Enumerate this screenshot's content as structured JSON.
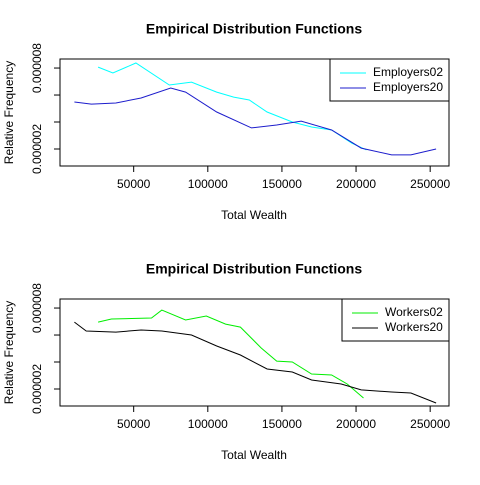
{
  "chart_data": [
    {
      "type": "line",
      "title": "Empirical Distribution Functions",
      "xlabel": "Total Wealth",
      "ylabel": "Relative Frequency",
      "xlim": [
        300,
        262700
      ],
      "ylim": [
        7.4e-07,
        8.67e-06
      ],
      "xticks": [
        50000,
        100000,
        150000,
        200000,
        250000
      ],
      "yticks": [
        {
          "value": 2e-06,
          "label": "0.000002"
        },
        {
          "value": 4e-06,
          "label": null
        },
        {
          "value": 6e-06,
          "label": null
        },
        {
          "value": 8e-06,
          "label": "0.000008"
        }
      ],
      "legend": "topright",
      "series": [
        {
          "name": "Employers02",
          "color": "#00ffff",
          "x": [
            26000,
            36000,
            51500,
            74000,
            89000,
            106000,
            117500,
            128000,
            140000,
            157000,
            170000,
            183500,
            197000,
            207000
          ],
          "values": [
            8.07e-06,
            7.63e-06,
            8.37e-06,
            6.74e-06,
            6.96e-06,
            6.22e-06,
            5.85e-06,
            5.63e-06,
            4.74e-06,
            4e-06,
            3.63e-06,
            3.41e-06,
            2.44e-06,
            1.93e-06
          ]
        },
        {
          "name": "Employers20",
          "color": "#1c1ccc",
          "x": [
            10000,
            21500,
            38000,
            55000,
            75000,
            85000,
            106000,
            129500,
            146500,
            163000,
            183500,
            203500,
            224000,
            237000,
            254000
          ],
          "values": [
            5.48e-06,
            5.33e-06,
            5.41e-06,
            5.78e-06,
            6.52e-06,
            6.22e-06,
            4.74e-06,
            3.56e-06,
            3.78e-06,
            4.07e-06,
            3.41e-06,
            2.07e-06,
            1.56e-06,
            1.56e-06,
            2e-06
          ]
        }
      ]
    },
    {
      "type": "line",
      "title": "Empirical Distribution Functions",
      "xlabel": "Total Wealth",
      "ylabel": "Relative Frequency",
      "xlim": [
        300,
        262700
      ],
      "ylim": [
        7.4e-07,
        8.67e-06
      ],
      "xticks": [
        50000,
        100000,
        150000,
        200000,
        250000
      ],
      "yticks": [
        {
          "value": 2e-06,
          "label": "0.000002"
        },
        {
          "value": 4e-06,
          "label": null
        },
        {
          "value": 6e-06,
          "label": null
        },
        {
          "value": 8e-06,
          "label": "0.000008"
        }
      ],
      "legend": "topright",
      "series": [
        {
          "name": "Workers02",
          "color": "#00ee00",
          "x": [
            26000,
            35000,
            62000,
            69000,
            85000,
            99000,
            112000,
            122000,
            136000,
            146500,
            157000,
            170000,
            183500,
            194000,
            205000
          ],
          "values": [
            6.96e-06,
            7.19e-06,
            7.26e-06,
            7.85e-06,
            7.11e-06,
            7.41e-06,
            6.81e-06,
            6.59e-06,
            5.04e-06,
            4.07e-06,
            4e-06,
            3.11e-06,
            3.04e-06,
            2.37e-06,
            1.33e-06
          ]
        },
        {
          "name": "Workers20",
          "color": "#000000",
          "x": [
            10000,
            18000,
            38000,
            55000,
            69000,
            89000,
            106000,
            122000,
            140000,
            157000,
            170000,
            190000,
            203500,
            224000,
            237000,
            254000
          ],
          "values": [
            6.96e-06,
            6.3e-06,
            6.22e-06,
            6.37e-06,
            6.3e-06,
            6e-06,
            5.19e-06,
            4.52e-06,
            3.48e-06,
            3.26e-06,
            2.67e-06,
            2.37e-06,
            1.93e-06,
            1.78e-06,
            1.7e-06,
            9.6e-07
          ]
        }
      ]
    }
  ]
}
